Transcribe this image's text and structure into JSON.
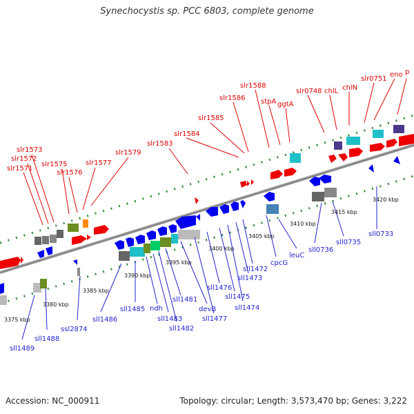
{
  "title": "Synechocystis sp. PCC 6803, complete genome",
  "footer": {
    "accession": "Accession: NC_000911",
    "summary": "Topology: circular; Length: 3,573,470 bp; Genes: 3,222"
  },
  "colors": {
    "forward_label": "#dd0000",
    "reverse_label": "#2222cc",
    "backbone": "#8a8a8a",
    "tick": "#2e8b2e"
  },
  "kbp_labels": [
    "3375 kbp",
    "3380 kbp",
    "3385 kbp",
    "3390 kbp",
    "3395 kbp",
    "3400 kbp",
    "3405 kbp",
    "3410 kbp",
    "3415 kbp",
    "3420 kbp"
  ],
  "forward_genes": [
    "slr1571",
    "slr1572",
    "slr1573",
    "slr1575",
    "slr1576",
    "slr1577",
    "slr1579",
    "slr1583",
    "slr1584",
    "slr1585",
    "slr1586",
    "slr1588",
    "stpA",
    "ggtA",
    "slr0748",
    "chlL",
    "chlN",
    "slr0751",
    "eno",
    "p"
  ],
  "reverse_genes": [
    "sll1489",
    "sll1488",
    "ssl2874",
    "sll1486",
    "sll1485",
    "ndh",
    "sll1483",
    "sll1482",
    "sll1481",
    "devB",
    "sll1477",
    "sll1476",
    "sll1475",
    "sll1474",
    "sll1473",
    "sll1472",
    "cpcG",
    "leuC",
    "sll0736",
    "sll0735",
    "sll0733"
  ]
}
